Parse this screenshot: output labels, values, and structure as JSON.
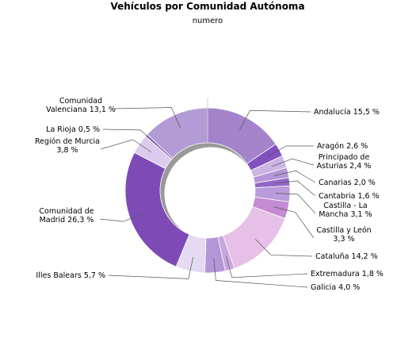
{
  "chart_data": {
    "type": "pie",
    "variant": "donut",
    "title": "Vehículos por Comunidad Autónoma",
    "subtitle": "numero",
    "legend": "none",
    "slices": [
      {
        "label": "Andalucía 15,5 %",
        "value": 15.5,
        "color": "#a583cb"
      },
      {
        "label": "Aragón 2,6 %",
        "value": 2.6,
        "color": "#8250bf"
      },
      {
        "label": "Principado de Asturias 2,4 %",
        "value": 2.4,
        "color": "#cbb5e2"
      },
      {
        "label": "Canarias 2,0 %",
        "value": 2.0,
        "color": "#b495d6"
      },
      {
        "label": "Cantabria 1,6 %",
        "value": 1.6,
        "color": "#9366c6"
      },
      {
        "label": "Castilla - La Mancha 3,1 %",
        "value": 3.1,
        "color": "#b99ada"
      },
      {
        "label": "Castilla y León 3,3 %",
        "value": 3.3,
        "color": "#c28bd2"
      },
      {
        "label": "Cataluña 14,2 %",
        "value": 14.2,
        "color": "#e6c0e6"
      },
      {
        "label": "Extremadura 1,8 %",
        "value": 1.8,
        "color": "#c9a6de"
      },
      {
        "label": "Galicia 4,0 %",
        "value": 4.0,
        "color": "#b396d8"
      },
      {
        "label": "Illes Balears 5,7 %",
        "value": 5.7,
        "color": "#e4daf1"
      },
      {
        "label": "Comunidad de Madrid 26,3 %",
        "value": 26.3,
        "color": "#7e4bb6"
      },
      {
        "label": "Región de Murcia 3,8 %",
        "value": 3.8,
        "color": "#dccbec"
      },
      {
        "label": "La Rioja 0,5 %",
        "value": 0.5,
        "color": "#8e67c0"
      },
      {
        "label": "Comunidad Valenciana 13,1 %",
        "value": 13.1,
        "color": "#b39bd6"
      }
    ]
  }
}
